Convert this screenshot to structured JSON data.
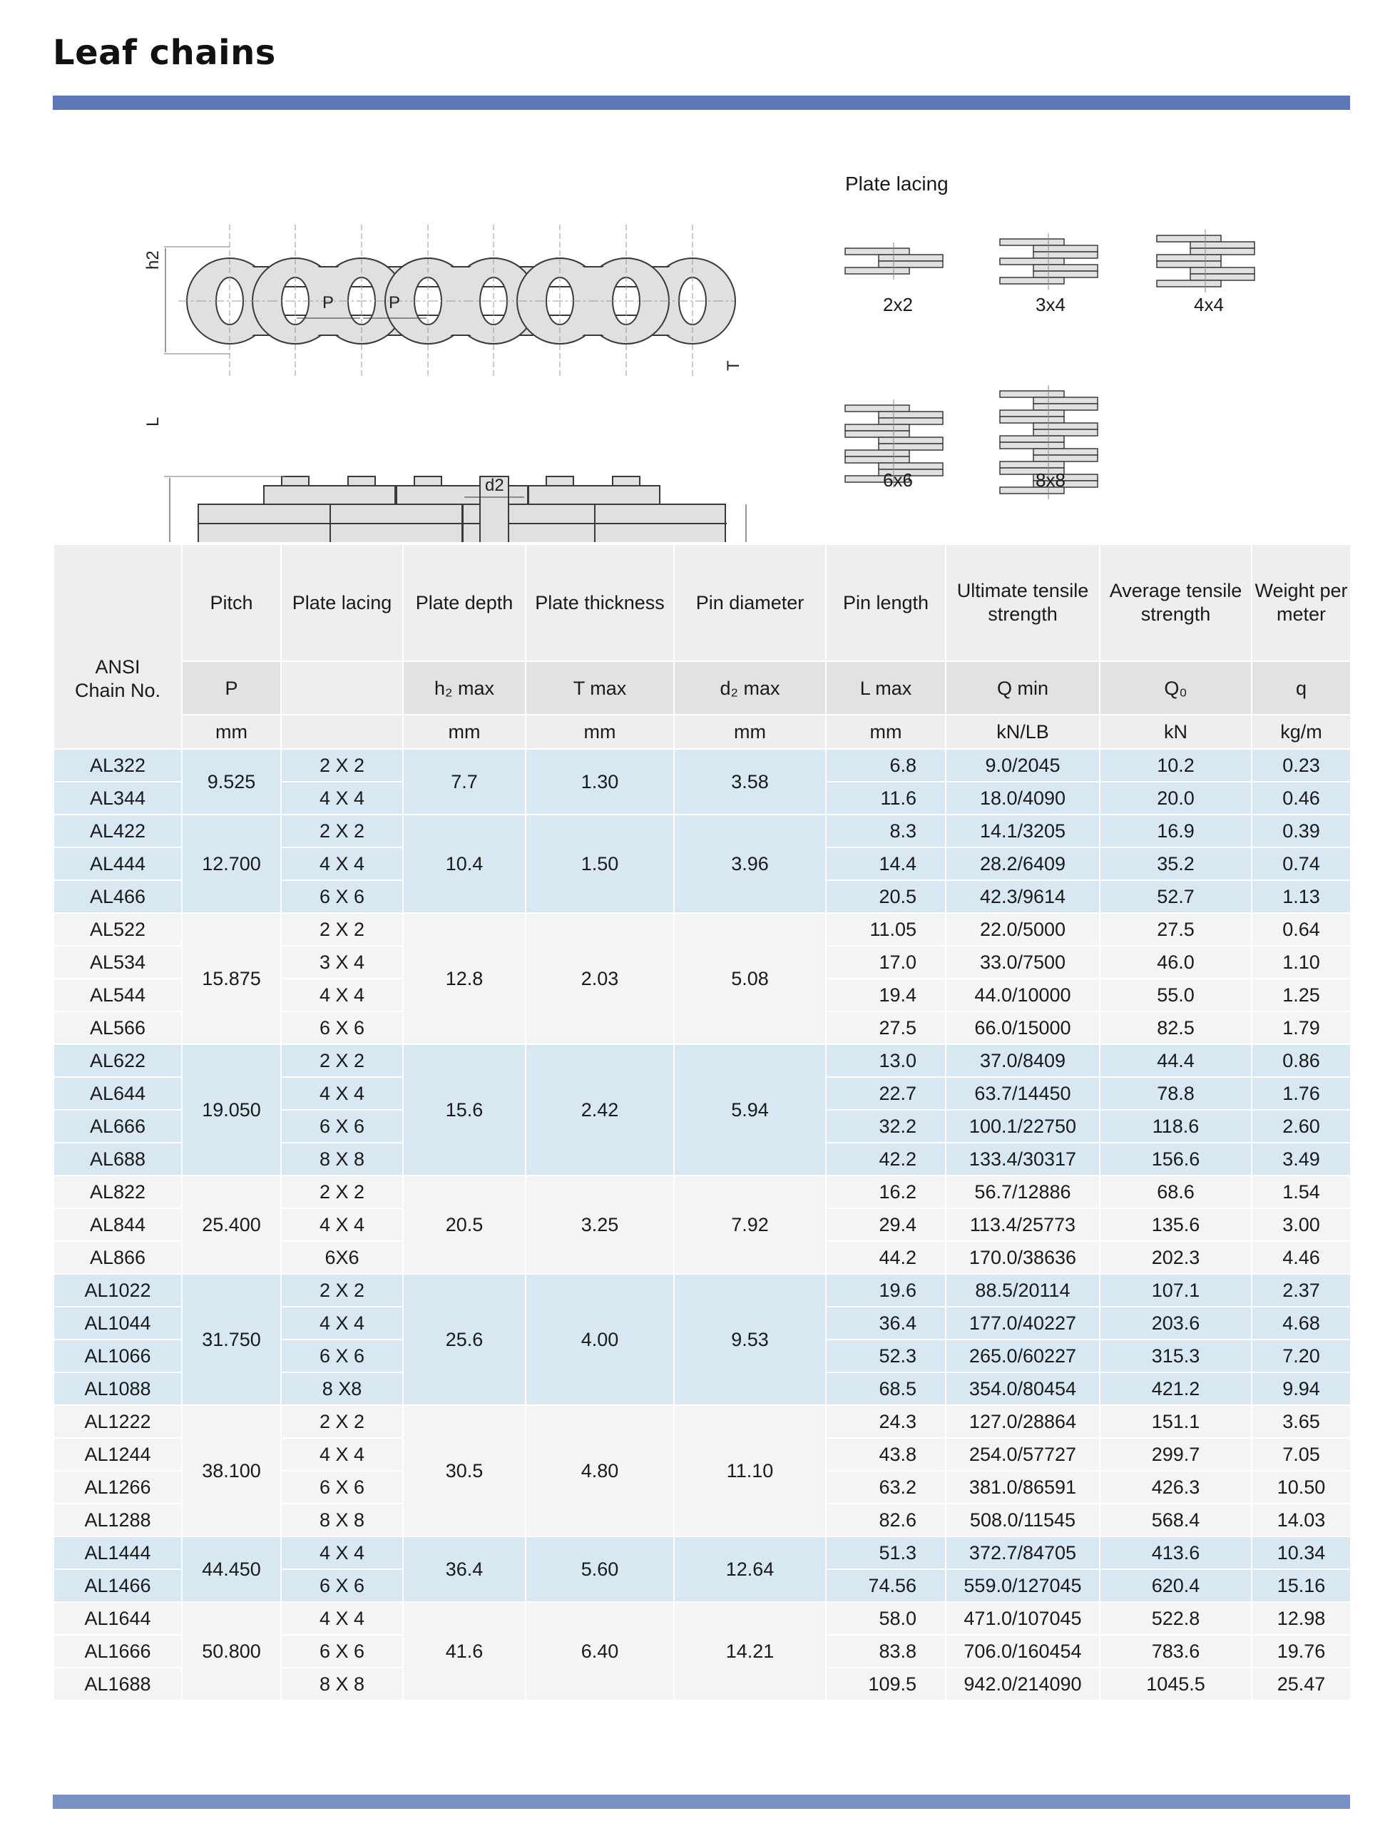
{
  "title": "Leaf chains",
  "diagram": {
    "labels": {
      "h2": "h2",
      "p1": "P",
      "p2": "P",
      "L": "L",
      "T": "T",
      "d2": "d2"
    },
    "plate_lacing_title": "Plate lacing",
    "lacings": [
      "2x2",
      "3x4",
      "4x4",
      "6x6",
      "8x8"
    ]
  },
  "colors": {
    "band_blue": "#d8e8f3",
    "band_white": "#f4f4f4",
    "bar": "#5b77b7"
  },
  "table": {
    "headers": {
      "ansi": "ANSI Chain No.",
      "names": [
        "Pitch",
        "Plate lacing",
        "Plate depth",
        "Plate thickness",
        "Pin diameter",
        "Pin length",
        "Ultimate tensile strength",
        "Average tensile strength",
        "Weight per meter"
      ],
      "symbols": [
        "P",
        "",
        "h₂ max",
        "T max",
        "d₂ max",
        "L max",
        "Q min",
        "Q₀",
        "q"
      ],
      "units": [
        "mm",
        "",
        "mm",
        "mm",
        "mm",
        "mm",
        "kN/LB",
        "kN",
        "kg/m"
      ]
    },
    "groups": [
      {
        "band": "blue",
        "pitch": "9.525",
        "depth": "7.7",
        "thickness": "1.30",
        "pin_dia": "3.58",
        "rows": [
          {
            "chain": "AL322",
            "lacing": "2 X 2",
            "pin_length": "6.8",
            "ultimate": "9.0/2045",
            "average": "10.2",
            "weight": "0.23"
          },
          {
            "chain": "AL344",
            "lacing": "4 X 4",
            "pin_length": "11.6",
            "ultimate": "18.0/4090",
            "average": "20.0",
            "weight": "0.46"
          }
        ]
      },
      {
        "band": "blue",
        "pitch": "12.700",
        "depth": "10.4",
        "thickness": "1.50",
        "pin_dia": "3.96",
        "rows": [
          {
            "chain": "AL422",
            "lacing": "2 X 2",
            "pin_length": "8.3",
            "ultimate": "14.1/3205",
            "average": "16.9",
            "weight": "0.39"
          },
          {
            "chain": "AL444",
            "lacing": "4 X 4",
            "pin_length": "14.4",
            "ultimate": "28.2/6409",
            "average": "35.2",
            "weight": "0.74"
          },
          {
            "chain": "AL466",
            "lacing": "6 X 6",
            "pin_length": "20.5",
            "ultimate": "42.3/9614",
            "average": "52.7",
            "weight": "1.13"
          }
        ]
      },
      {
        "band": "white",
        "pitch": "15.875",
        "depth": "12.8",
        "thickness": "2.03",
        "pin_dia": "5.08",
        "rows": [
          {
            "chain": "AL522",
            "lacing": "2 X 2",
            "pin_length": "11.05",
            "ultimate": "22.0/5000",
            "average": "27.5",
            "weight": "0.64"
          },
          {
            "chain": "AL534",
            "lacing": "3 X 4",
            "pin_length": "17.0",
            "ultimate": "33.0/7500",
            "average": "46.0",
            "weight": "1.10"
          },
          {
            "chain": "AL544",
            "lacing": "4 X 4",
            "pin_length": "19.4",
            "ultimate": "44.0/10000",
            "average": "55.0",
            "weight": "1.25"
          },
          {
            "chain": "AL566",
            "lacing": "6 X 6",
            "pin_length": "27.5",
            "ultimate": "66.0/15000",
            "average": "82.5",
            "weight": "1.79"
          }
        ]
      },
      {
        "band": "blue",
        "pitch": "19.050",
        "depth": "15.6",
        "thickness": "2.42",
        "pin_dia": "5.94",
        "rows": [
          {
            "chain": "AL622",
            "lacing": "2 X 2",
            "pin_length": "13.0",
            "ultimate": "37.0/8409",
            "average": "44.4",
            "weight": "0.86"
          },
          {
            "chain": "AL644",
            "lacing": "4 X 4",
            "pin_length": "22.7",
            "ultimate": "63.7/14450",
            "average": "78.8",
            "weight": "1.76"
          },
          {
            "chain": "AL666",
            "lacing": "6 X 6",
            "pin_length": "32.2",
            "ultimate": "100.1/22750",
            "average": "118.6",
            "weight": "2.60"
          },
          {
            "chain": "AL688",
            "lacing": "8 X 8",
            "pin_length": "42.2",
            "ultimate": "133.4/30317",
            "average": "156.6",
            "weight": "3.49"
          }
        ]
      },
      {
        "band": "white",
        "pitch": "25.400",
        "depth": "20.5",
        "thickness": "3.25",
        "pin_dia": "7.92",
        "rows": [
          {
            "chain": "AL822",
            "lacing": "2 X 2",
            "pin_length": "16.2",
            "ultimate": "56.7/12886",
            "average": "68.6",
            "weight": "1.54"
          },
          {
            "chain": "AL844",
            "lacing": "4 X 4",
            "pin_length": "29.4",
            "ultimate": "113.4/25773",
            "average": "135.6",
            "weight": "3.00"
          },
          {
            "chain": "AL866",
            "lacing": "6X6",
            "pin_length": "44.2",
            "ultimate": "170.0/38636",
            "average": "202.3",
            "weight": "4.46"
          }
        ]
      },
      {
        "band": "blue",
        "pitch": "31.750",
        "depth": "25.6",
        "thickness": "4.00",
        "pin_dia": "9.53",
        "rows": [
          {
            "chain": "AL1022",
            "lacing": "2 X 2",
            "pin_length": "19.6",
            "ultimate": "88.5/20114",
            "average": "107.1",
            "weight": "2.37"
          },
          {
            "chain": "AL1044",
            "lacing": "4 X 4",
            "pin_length": "36.4",
            "ultimate": "177.0/40227",
            "average": "203.6",
            "weight": "4.68"
          },
          {
            "chain": "AL1066",
            "lacing": "6 X 6",
            "pin_length": "52.3",
            "ultimate": "265.0/60227",
            "average": "315.3",
            "weight": "7.20"
          },
          {
            "chain": "AL1088",
            "lacing": "8 X8",
            "pin_length": "68.5",
            "ultimate": "354.0/80454",
            "average": "421.2",
            "weight": "9.94"
          }
        ]
      },
      {
        "band": "white",
        "pitch": "38.100",
        "depth": "30.5",
        "thickness": "4.80",
        "pin_dia": "11.10",
        "rows": [
          {
            "chain": "AL1222",
            "lacing": "2 X 2",
            "pin_length": "24.3",
            "ultimate": "127.0/28864",
            "average": "151.1",
            "weight": "3.65"
          },
          {
            "chain": "AL1244",
            "lacing": "4 X 4",
            "pin_length": "43.8",
            "ultimate": "254.0/57727",
            "average": "299.7",
            "weight": "7.05"
          },
          {
            "chain": "AL1266",
            "lacing": "6 X 6",
            "pin_length": "63.2",
            "ultimate": "381.0/86591",
            "average": "426.3",
            "weight": "10.50"
          },
          {
            "chain": "AL1288",
            "lacing": "8 X 8",
            "pin_length": "82.6",
            "ultimate": "508.0/11545",
            "average": "568.4",
            "weight": "14.03"
          }
        ]
      },
      {
        "band": "blue",
        "pitch": "44.450",
        "depth": "36.4",
        "thickness": "5.60",
        "pin_dia": "12.64",
        "rows": [
          {
            "chain": "AL1444",
            "lacing": "4 X 4",
            "pin_length": "51.3",
            "ultimate": "372.7/84705",
            "average": "413.6",
            "weight": "10.34"
          },
          {
            "chain": "AL1466",
            "lacing": "6 X 6",
            "pin_length": "74.56",
            "ultimate": "559.0/127045",
            "average": "620.4",
            "weight": "15.16"
          }
        ]
      },
      {
        "band": "white",
        "pitch": "50.800",
        "depth": "41.6",
        "thickness": "6.40",
        "pin_dia": "14.21",
        "rows": [
          {
            "chain": "AL1644",
            "lacing": "4 X 4",
            "pin_length": "58.0",
            "ultimate": "471.0/107045",
            "average": "522.8",
            "weight": "12.98"
          },
          {
            "chain": "AL1666",
            "lacing": "6 X 6",
            "pin_length": "83.8",
            "ultimate": "706.0/160454",
            "average": "783.6",
            "weight": "19.76"
          },
          {
            "chain": "AL1688",
            "lacing": "8 X 8",
            "pin_length": "109.5",
            "ultimate": "942.0/214090",
            "average": "1045.5",
            "weight": "25.47"
          }
        ]
      }
    ]
  }
}
